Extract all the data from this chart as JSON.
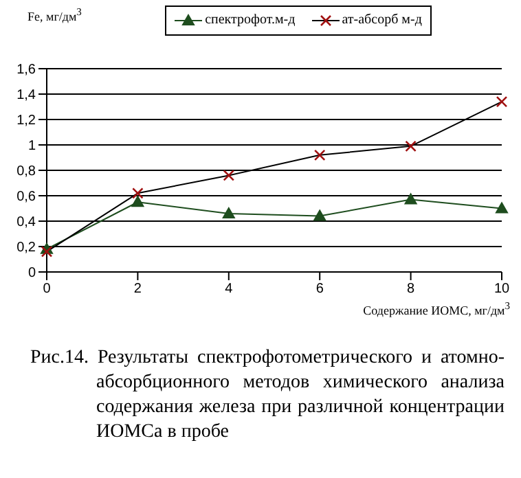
{
  "chart_data": {
    "type": "line",
    "ylabel": "Fe, мг/дм$^{3}$",
    "xlabel": "Содержание ИОМС, мг/дм$^{3}$",
    "categories": [
      "0",
      "2",
      "4",
      "6",
      "8",
      "10"
    ],
    "series": [
      {
        "name": "спектрофот.м-д",
        "color": "#1e4d1e",
        "marker": "triangle",
        "values": [
          0.18,
          0.55,
          0.46,
          0.44,
          0.57,
          0.5
        ]
      },
      {
        "name": "ат-абсорб м-д",
        "color": "#000000",
        "marker": "cross",
        "values": [
          0.16,
          0.62,
          0.76,
          0.92,
          0.99,
          1.34
        ]
      }
    ],
    "ylim": [
      0,
      1.6
    ],
    "yticks": [
      0,
      {
        "value": 0.2,
        "label": "0,2"
      },
      {
        "value": 0.4,
        "label": "0,4"
      },
      {
        "value": 0.6,
        "label": "0,6"
      },
      {
        "value": 0.8,
        "label": "0,8"
      },
      1,
      {
        "value": 1.2,
        "label": "1,2"
      },
      {
        "value": 1.4,
        "label": "1,4"
      },
      {
        "value": 1.6,
        "label": "1,6"
      }
    ],
    "grid": "y",
    "legend": "top",
    "annotations": [
      "Рис.14. Результаты спектрофотометрического и атомно-абсорбционного методов химического анализа содержания железа при различной концентрации ИОМСа в пробе"
    ]
  }
}
